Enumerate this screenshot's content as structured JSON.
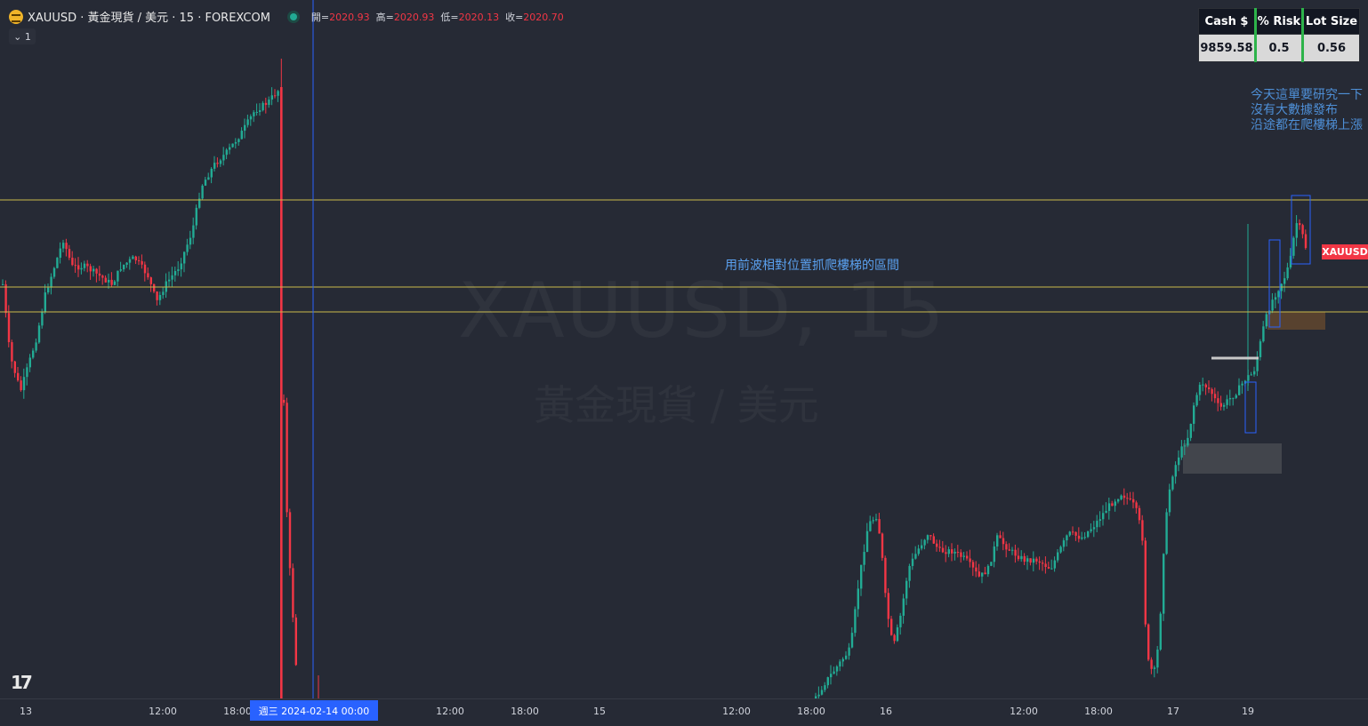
{
  "header": {
    "symbol_line": "XAUUSD · 黃金現貨 / 美元 · 15 · FOREXCOM",
    "open_label": "開=",
    "open": "2020.93",
    "high_label": "高=",
    "high": "2020.93",
    "low_label": "低=",
    "low": "2020.13",
    "close_label": "收=",
    "close": "2020.70",
    "collapse_label": "⌄ 1"
  },
  "risk_table": {
    "headers": [
      "Cash $",
      "% Risk",
      "Lot Size"
    ],
    "values": [
      "9859.58",
      "0.5",
      "0.56"
    ]
  },
  "note_lines": [
    "今天這單要研究一下",
    "沒有大數據發布",
    "沿途都在爬樓梯上漲"
  ],
  "annotation": "用前波相對位置抓爬樓梯的區間",
  "watermark": {
    "line1": "XAUUSD, 15",
    "line2": "黃金現貨 / 美元"
  },
  "price_label": "XAUUSD",
  "tv_logo": "17",
  "x_axis": {
    "ticks": [
      "13",
      "12:00",
      "18:00",
      "12:00",
      "18:00",
      "15",
      "12:00",
      "18:00",
      "16",
      "12:00",
      "18:00",
      "17",
      "19"
    ],
    "crosshair_label": "週三 2024-02-14   00:00"
  },
  "chart_data": {
    "type": "candlestick",
    "timeframe": "15",
    "symbol": "XAUUSD",
    "x_ticks": [
      "13",
      "12:00",
      "18:00",
      "12:00",
      "18:00",
      "15",
      "12:00",
      "18:00",
      "16",
      "12:00",
      "18:00",
      "17",
      "19"
    ],
    "crosshair_time": "2024-02-14 00:00",
    "last": {
      "open": 2020.93,
      "high": 2020.93,
      "low": 2020.13,
      "close": 2020.7
    },
    "colors": {
      "up": "#22ab94",
      "down": "#f23645",
      "hline": "#c9b94a",
      "crosshair": "#2962ff",
      "background": "#262a35"
    },
    "grid": false
  }
}
